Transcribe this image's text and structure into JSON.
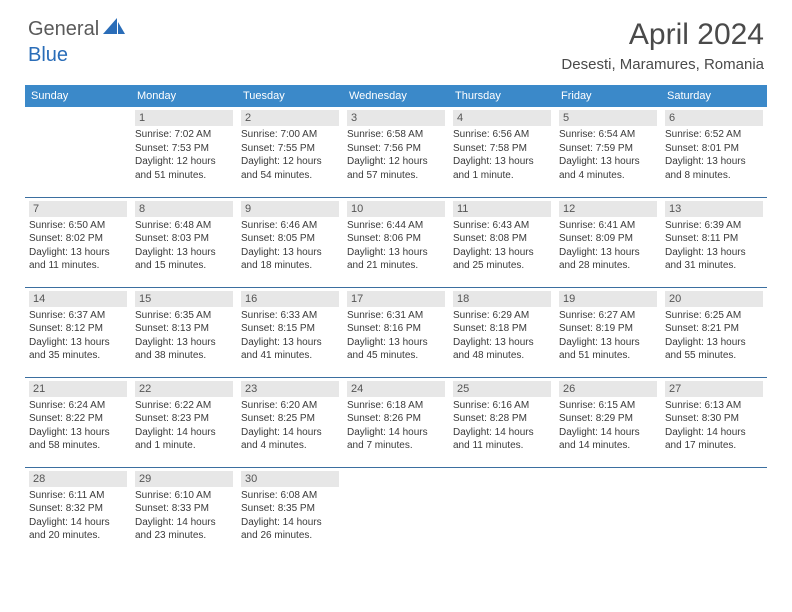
{
  "brand": {
    "part1": "General",
    "part2": "Blue"
  },
  "title": "April 2024",
  "location": "Desesti, Maramures, Romania",
  "dayHeaders": [
    "Sunday",
    "Monday",
    "Tuesday",
    "Wednesday",
    "Thursday",
    "Friday",
    "Saturday"
  ],
  "colors": {
    "headerBg": "#3b89c9",
    "headerText": "#ffffff",
    "dayNumBg": "#e7e7e7",
    "rowDivider": "#3b6fa0",
    "brandBlue": "#2a6db8",
    "brandGray": "#5a5a5a"
  },
  "weeks": [
    [
      {
        "empty": true
      },
      {
        "n": "1",
        "sr": "7:02 AM",
        "ss": "7:53 PM",
        "dl": "12 hours and 51 minutes."
      },
      {
        "n": "2",
        "sr": "7:00 AM",
        "ss": "7:55 PM",
        "dl": "12 hours and 54 minutes."
      },
      {
        "n": "3",
        "sr": "6:58 AM",
        "ss": "7:56 PM",
        "dl": "12 hours and 57 minutes."
      },
      {
        "n": "4",
        "sr": "6:56 AM",
        "ss": "7:58 PM",
        "dl": "13 hours and 1 minute."
      },
      {
        "n": "5",
        "sr": "6:54 AM",
        "ss": "7:59 PM",
        "dl": "13 hours and 4 minutes."
      },
      {
        "n": "6",
        "sr": "6:52 AM",
        "ss": "8:01 PM",
        "dl": "13 hours and 8 minutes."
      }
    ],
    [
      {
        "n": "7",
        "sr": "6:50 AM",
        "ss": "8:02 PM",
        "dl": "13 hours and 11 minutes."
      },
      {
        "n": "8",
        "sr": "6:48 AM",
        "ss": "8:03 PM",
        "dl": "13 hours and 15 minutes."
      },
      {
        "n": "9",
        "sr": "6:46 AM",
        "ss": "8:05 PM",
        "dl": "13 hours and 18 minutes."
      },
      {
        "n": "10",
        "sr": "6:44 AM",
        "ss": "8:06 PM",
        "dl": "13 hours and 21 minutes."
      },
      {
        "n": "11",
        "sr": "6:43 AM",
        "ss": "8:08 PM",
        "dl": "13 hours and 25 minutes."
      },
      {
        "n": "12",
        "sr": "6:41 AM",
        "ss": "8:09 PM",
        "dl": "13 hours and 28 minutes."
      },
      {
        "n": "13",
        "sr": "6:39 AM",
        "ss": "8:11 PM",
        "dl": "13 hours and 31 minutes."
      }
    ],
    [
      {
        "n": "14",
        "sr": "6:37 AM",
        "ss": "8:12 PM",
        "dl": "13 hours and 35 minutes."
      },
      {
        "n": "15",
        "sr": "6:35 AM",
        "ss": "8:13 PM",
        "dl": "13 hours and 38 minutes."
      },
      {
        "n": "16",
        "sr": "6:33 AM",
        "ss": "8:15 PM",
        "dl": "13 hours and 41 minutes."
      },
      {
        "n": "17",
        "sr": "6:31 AM",
        "ss": "8:16 PM",
        "dl": "13 hours and 45 minutes."
      },
      {
        "n": "18",
        "sr": "6:29 AM",
        "ss": "8:18 PM",
        "dl": "13 hours and 48 minutes."
      },
      {
        "n": "19",
        "sr": "6:27 AM",
        "ss": "8:19 PM",
        "dl": "13 hours and 51 minutes."
      },
      {
        "n": "20",
        "sr": "6:25 AM",
        "ss": "8:21 PM",
        "dl": "13 hours and 55 minutes."
      }
    ],
    [
      {
        "n": "21",
        "sr": "6:24 AM",
        "ss": "8:22 PM",
        "dl": "13 hours and 58 minutes."
      },
      {
        "n": "22",
        "sr": "6:22 AM",
        "ss": "8:23 PM",
        "dl": "14 hours and 1 minute."
      },
      {
        "n": "23",
        "sr": "6:20 AM",
        "ss": "8:25 PM",
        "dl": "14 hours and 4 minutes."
      },
      {
        "n": "24",
        "sr": "6:18 AM",
        "ss": "8:26 PM",
        "dl": "14 hours and 7 minutes."
      },
      {
        "n": "25",
        "sr": "6:16 AM",
        "ss": "8:28 PM",
        "dl": "14 hours and 11 minutes."
      },
      {
        "n": "26",
        "sr": "6:15 AM",
        "ss": "8:29 PM",
        "dl": "14 hours and 14 minutes."
      },
      {
        "n": "27",
        "sr": "6:13 AM",
        "ss": "8:30 PM",
        "dl": "14 hours and 17 minutes."
      }
    ],
    [
      {
        "n": "28",
        "sr": "6:11 AM",
        "ss": "8:32 PM",
        "dl": "14 hours and 20 minutes."
      },
      {
        "n": "29",
        "sr": "6:10 AM",
        "ss": "8:33 PM",
        "dl": "14 hours and 23 minutes."
      },
      {
        "n": "30",
        "sr": "6:08 AM",
        "ss": "8:35 PM",
        "dl": "14 hours and 26 minutes."
      },
      {
        "empty": true
      },
      {
        "empty": true
      },
      {
        "empty": true
      },
      {
        "empty": true
      }
    ]
  ],
  "labels": {
    "sunrise": "Sunrise: ",
    "sunset": "Sunset: ",
    "daylight": "Daylight: "
  }
}
